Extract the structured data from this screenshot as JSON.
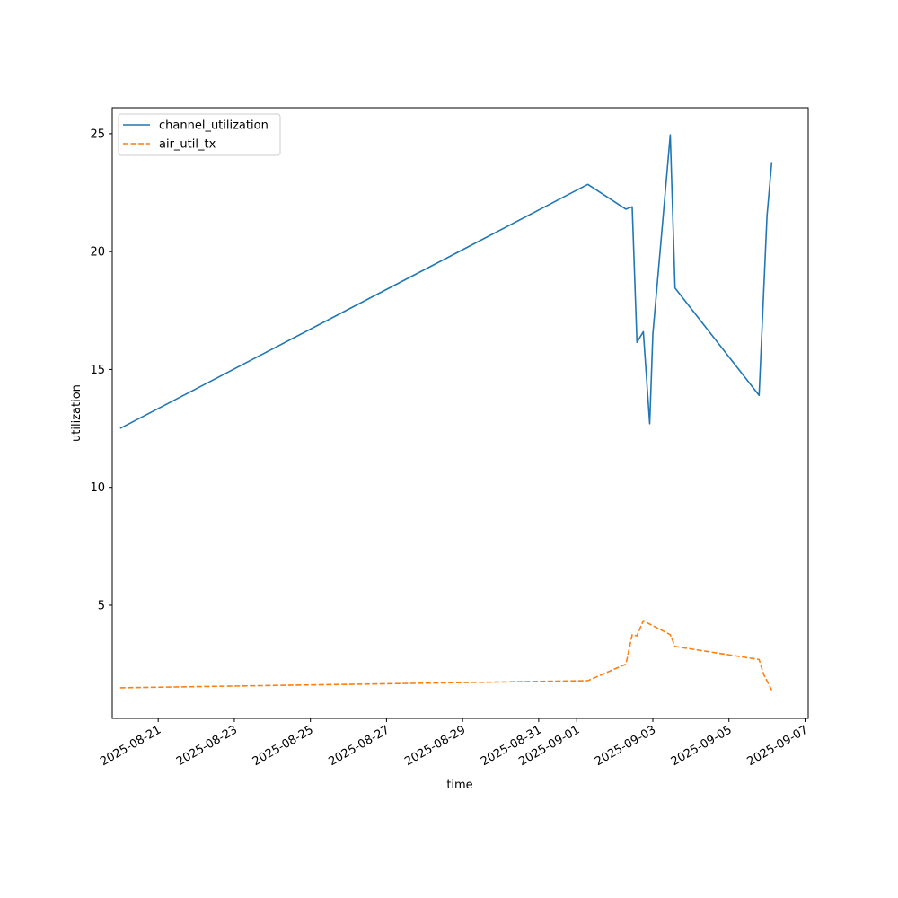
{
  "chart_data": {
    "type": "line",
    "title": "",
    "xlabel": "time",
    "ylabel": "utilization",
    "x_tick_labels": [
      "2025-08-21",
      "2025-08-23",
      "2025-08-25",
      "2025-08-27",
      "2025-08-29",
      "2025-08-31",
      "2025-09-01",
      "2025-09-03",
      "2025-09-05",
      "2025-09-07"
    ],
    "y_ticks": [
      5,
      10,
      15,
      20,
      25
    ],
    "xlim": [
      "2025-08-19T19:00",
      "2025-09-07T02:00"
    ],
    "ylim": [
      0.2,
      26.1
    ],
    "grid": false,
    "legend_position": "top-left",
    "series": [
      {
        "name": "channel_utilization",
        "color": "#1f77b4",
        "dash": "solid",
        "points": [
          [
            "2025-08-20T00:00",
            12.5
          ],
          [
            "2025-09-01T07:00",
            22.85
          ],
          [
            "2025-09-02T07:00",
            21.8
          ],
          [
            "2025-09-02T11:00",
            21.9
          ],
          [
            "2025-09-02T14:00",
            16.15
          ],
          [
            "2025-09-02T18:00",
            16.6
          ],
          [
            "2025-09-02T22:00",
            12.7
          ],
          [
            "2025-09-03T00:00",
            16.5
          ],
          [
            "2025-09-03T11:00",
            24.95
          ],
          [
            "2025-09-03T14:00",
            18.45
          ],
          [
            "2025-09-05T19:00",
            13.9
          ],
          [
            "2025-09-06T00:00",
            21.5
          ],
          [
            "2025-09-06T03:00",
            23.8
          ]
        ]
      },
      {
        "name": "air_util_tx",
        "color": "#ff7f0e",
        "dash": "dashed",
        "points": [
          [
            "2025-08-20T00:00",
            1.5
          ],
          [
            "2025-09-01T07:00",
            1.8
          ],
          [
            "2025-09-02T07:00",
            2.5
          ],
          [
            "2025-09-02T11:00",
            3.75
          ],
          [
            "2025-09-02T14:00",
            3.7
          ],
          [
            "2025-09-02T18:00",
            4.35
          ],
          [
            "2025-09-02T22:00",
            4.2
          ],
          [
            "2025-09-03T11:00",
            3.75
          ],
          [
            "2025-09-03T14:00",
            3.25
          ],
          [
            "2025-09-05T19:00",
            2.7
          ],
          [
            "2025-09-05T22:00",
            2.05
          ],
          [
            "2025-09-06T03:00",
            1.4
          ]
        ]
      }
    ]
  }
}
